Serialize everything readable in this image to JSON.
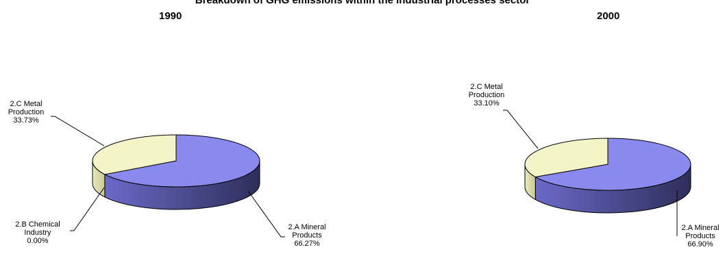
{
  "title": "Breakdown of GHG emissions within the industrial processes sector",
  "chart_data": [
    {
      "type": "pie",
      "title": "1990",
      "slices": [
        {
          "name": "2.A Mineral Products",
          "label_lines": [
            "2.A Mineral",
            "Products"
          ],
          "value": 66.27,
          "display": "66.27%",
          "color": "#8A8AEE",
          "side": "#44447A"
        },
        {
          "name": "2.B Chemical Industry",
          "label_lines": [
            "2.B Chemical",
            "Industry"
          ],
          "value": 0.0,
          "display": "0.00%",
          "color": "#C9C9FF",
          "side": "#8888AA"
        },
        {
          "name": "2.C Metal Production",
          "label_lines": [
            "2.C Metal",
            "Production"
          ],
          "value": 33.73,
          "display": "33.73%",
          "color": "#F4F4C8",
          "side": "#D7D7A4"
        }
      ]
    },
    {
      "type": "pie",
      "title": "2000",
      "slices": [
        {
          "name": "2.A Mineral Products",
          "label_lines": [
            "2.A Mineral",
            "Products"
          ],
          "value": 66.9,
          "display": "66.90%",
          "color": "#8A8AEE",
          "side": "#44447A"
        },
        {
          "name": "2.C Metal Production",
          "label_lines": [
            "2.C Metal",
            "Production"
          ],
          "value": 33.1,
          "display": "33.10%",
          "color": "#F4F4C8",
          "side": "#D7D7A4"
        }
      ]
    }
  ]
}
